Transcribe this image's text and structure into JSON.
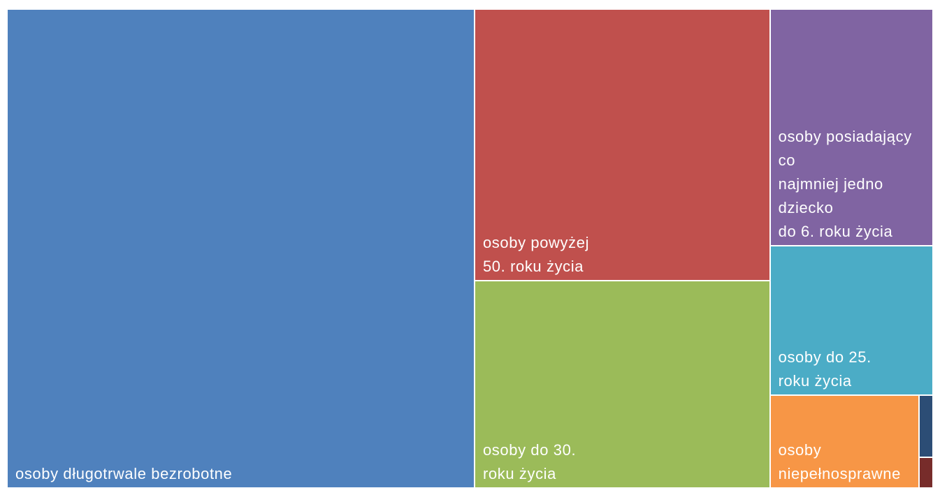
{
  "chart_data": {
    "type": "treemap",
    "title": "",
    "items": [
      {
        "label": "osoby długotrwale bezrobotne",
        "value": 51.6,
        "color": "#4F81BD"
      },
      {
        "label": "osoby powyżej\n50. roku życia",
        "value": 18.5,
        "color": "#C0504D"
      },
      {
        "label": "osoby do 30.\nroku życia",
        "value": 14.1,
        "color": "#9BBB59"
      },
      {
        "label": "osoby posiadający co\nnajmniej jedno dziecko\ndo 6. roku życia",
        "value": 8.9,
        "color": "#8064A2"
      },
      {
        "label": "osoby do 25.\nroku życia",
        "value": 5.6,
        "color": "#4BACC6"
      },
      {
        "label": "osoby\nniepełnosprawne",
        "value": 3.2,
        "color": "#F79646"
      },
      {
        "label": "",
        "value": 0.2,
        "color": "#2C4D75"
      },
      {
        "label": "",
        "value": 0.1,
        "color": "#772C2A"
      }
    ]
  }
}
